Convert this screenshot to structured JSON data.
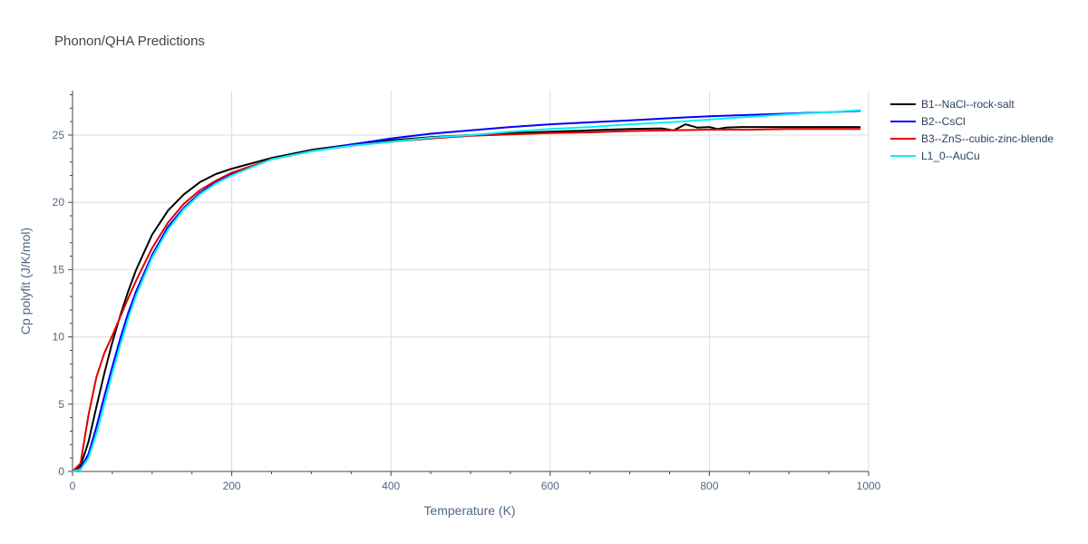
{
  "chart_data": {
    "type": "line",
    "title": "Phonon/QHA Predictions",
    "xlabel": "Temperature (K)",
    "ylabel": "Cp polyfit (J/K/mol)",
    "xlim": [
      0,
      1000
    ],
    "ylim": [
      0,
      28.3
    ],
    "x_ticks": [
      0,
      200,
      400,
      600,
      800,
      1000
    ],
    "y_ticks": [
      0,
      5,
      10,
      15,
      20,
      25
    ],
    "grid": true,
    "legend_position": "top-right",
    "series": [
      {
        "name": "B1--NaCl--rock-salt",
        "color": "#000000",
        "x": [
          0,
          10,
          20,
          30,
          40,
          50,
          60,
          70,
          80,
          100,
          120,
          140,
          160,
          180,
          200,
          250,
          300,
          350,
          400,
          450,
          500,
          550,
          600,
          650,
          700,
          740,
          755,
          770,
          785,
          800,
          810,
          820,
          840,
          900,
          950,
          990
        ],
        "y": [
          0,
          0.4,
          2.2,
          4.8,
          7.3,
          9.6,
          11.6,
          13.4,
          15.0,
          17.6,
          19.4,
          20.6,
          21.5,
          22.1,
          22.5,
          23.3,
          23.9,
          24.3,
          24.6,
          24.85,
          25.0,
          25.15,
          25.25,
          25.35,
          25.45,
          25.5,
          25.35,
          25.8,
          25.55,
          25.6,
          25.45,
          25.55,
          25.6,
          25.6,
          25.6,
          25.6
        ]
      },
      {
        "name": "B2--CsCl",
        "color": "#0000ff",
        "x": [
          0,
          10,
          20,
          30,
          40,
          50,
          60,
          70,
          80,
          100,
          120,
          140,
          160,
          180,
          200,
          250,
          300,
          350,
          400,
          450,
          500,
          550,
          600,
          650,
          700,
          750,
          800,
          850,
          900,
          950,
          990
        ],
        "y": [
          0,
          0.2,
          1.3,
          3.3,
          5.6,
          7.8,
          9.9,
          11.8,
          13.4,
          16.1,
          18.2,
          19.6,
          20.7,
          21.5,
          22.1,
          23.2,
          23.8,
          24.3,
          24.75,
          25.1,
          25.35,
          25.6,
          25.8,
          25.95,
          26.1,
          26.25,
          26.4,
          26.5,
          26.6,
          26.7,
          26.8
        ]
      },
      {
        "name": "B3--ZnS--cubic-zinc-blende",
        "color": "#e00000",
        "x": [
          0,
          10,
          20,
          30,
          40,
          50,
          60,
          70,
          80,
          100,
          120,
          140,
          160,
          180,
          200,
          250,
          300,
          350,
          400,
          450,
          500,
          550,
          600,
          650,
          700,
          750,
          800,
          850,
          900,
          950,
          990
        ],
        "y": [
          0,
          0.6,
          4.2,
          7.0,
          8.8,
          10.1,
          11.5,
          12.9,
          14.2,
          16.6,
          18.5,
          19.9,
          20.9,
          21.6,
          22.2,
          23.2,
          23.8,
          24.2,
          24.5,
          24.75,
          24.95,
          25.05,
          25.15,
          25.2,
          25.3,
          25.35,
          25.4,
          25.4,
          25.45,
          25.45,
          25.45
        ]
      },
      {
        "name": "L1_0--AuCu",
        "color": "#00f0ff",
        "x": [
          0,
          10,
          20,
          30,
          40,
          50,
          60,
          70,
          80,
          100,
          120,
          140,
          160,
          180,
          200,
          250,
          300,
          350,
          400,
          450,
          500,
          550,
          600,
          650,
          700,
          750,
          800,
          850,
          900,
          950,
          990
        ],
        "y": [
          0,
          0.15,
          1.0,
          2.8,
          5.0,
          7.3,
          9.4,
          11.4,
          13.1,
          15.9,
          18.0,
          19.5,
          20.6,
          21.4,
          22.0,
          23.2,
          23.8,
          24.2,
          24.5,
          24.8,
          25.0,
          25.25,
          25.45,
          25.6,
          25.8,
          25.95,
          26.15,
          26.35,
          26.55,
          26.7,
          26.85
        ]
      }
    ]
  }
}
